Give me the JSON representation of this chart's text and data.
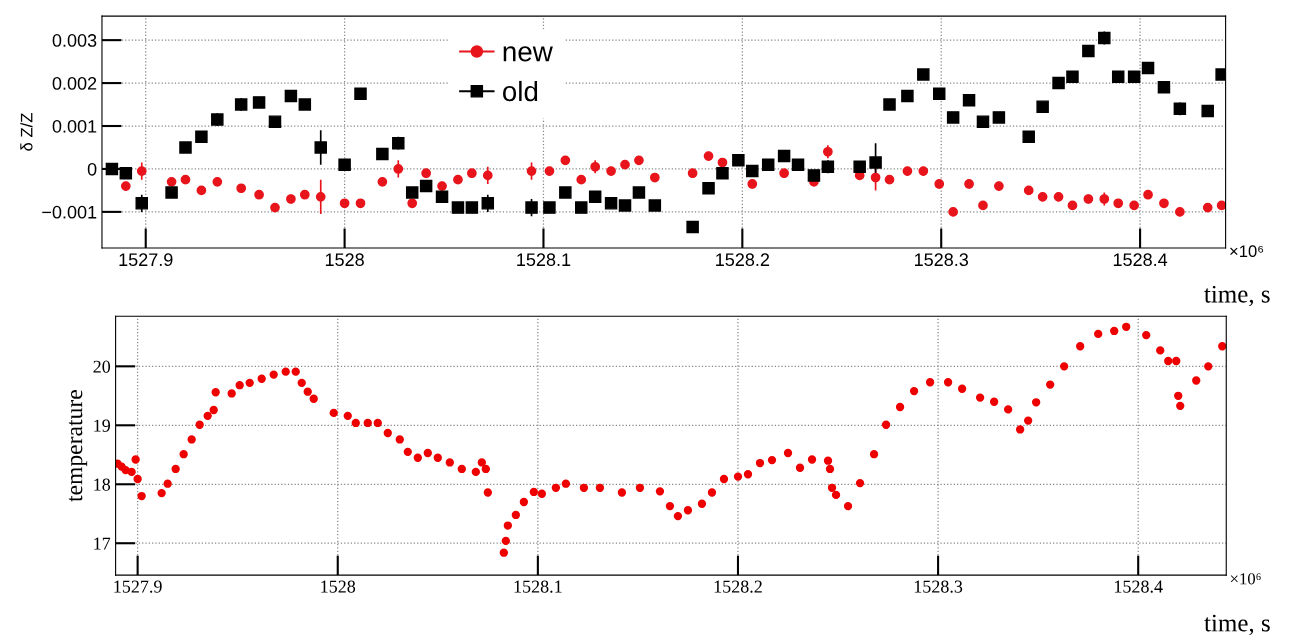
{
  "chart_data": [
    {
      "type": "scatter",
      "ylabel": "δ Z/Z",
      "xlabel": "time, s",
      "annotations": [
        "×10⁶"
      ],
      "legend": "top",
      "grid": true,
      "xlim": [
        1527.878,
        1528.443
      ],
      "xticks": [
        1527.9,
        1528,
        1528.1,
        1528.2,
        1528.3,
        1528.4
      ],
      "ylim": [
        -0.00184,
        0.00356
      ],
      "yticks": [
        {
          "value": -0.001,
          "label": "−0.001"
        },
        0,
        0.001,
        0.002,
        0.003
      ],
      "x": [
        1527.883,
        1527.89,
        1527.898,
        1527.913,
        1527.92,
        1527.928,
        1527.936,
        1527.948,
        1527.957,
        1527.965,
        1527.973,
        1527.98,
        1527.988,
        1528.0,
        1528.008,
        1528.019,
        1528.027,
        1528.034,
        1528.041,
        1528.049,
        1528.057,
        1528.064,
        1528.072,
        1528.094,
        1528.103,
        1528.111,
        1528.119,
        1528.126,
        1528.134,
        1528.141,
        1528.148,
        1528.156,
        1528.175,
        1528.183,
        1528.19,
        1528.198,
        1528.205,
        1528.213,
        1528.221,
        1528.228,
        1528.236,
        1528.243,
        1528.259,
        1528.267,
        1528.274,
        1528.283,
        1528.291,
        1528.299,
        1528.306,
        1528.314,
        1528.321,
        1528.329,
        1528.344,
        1528.351,
        1528.359,
        1528.366,
        1528.374,
        1528.382,
        1528.389,
        1528.397,
        1528.404,
        1528.412,
        1528.42,
        1528.434,
        1528.441
      ],
      "series": [
        {
          "name": "new",
          "color": "#e8141c",
          "marker": "circle",
          "values": [
            null,
            -0.0004,
            -5e-05,
            -0.0003,
            -0.00025,
            -0.0005,
            -0.0003,
            -0.00045,
            -0.0006,
            -0.0009,
            -0.0007,
            -0.0006,
            -0.00065,
            -0.0008,
            -0.0008,
            -0.0003,
            0,
            -0.0008,
            -0.0001,
            -0.0004,
            -0.00025,
            -0.0001,
            -0.00015,
            -5e-05,
            -5e-05,
            0.0002,
            -0.00025,
            5e-05,
            -5e-05,
            0.0001,
            0.0002,
            -0.0002,
            -0.0001,
            0.0003,
            0.00015,
            null,
            -0.00035,
            null,
            -0.0001,
            null,
            -0.0003,
            0.0004,
            -0.00015,
            -0.0002,
            -0.00025,
            -5e-05,
            -5e-05,
            -0.00035,
            -0.001,
            -0.00035,
            -0.00085,
            -0.0004,
            -0.0005,
            -0.00065,
            -0.00065,
            -0.00085,
            -0.0007,
            -0.0007,
            -0.0008,
            -0.00085,
            -0.0006,
            -0.0008,
            -0.001,
            -0.0009,
            -0.00085
          ],
          "errors": [
            null,
            0.0001,
            0.0002,
            0.0001,
            0.0001,
            0.0001,
            0.0001,
            0.0001,
            0.0001,
            0.0001,
            0.0001,
            0.0001,
            0.0004,
            0.0001,
            0.0001,
            0.0001,
            0.0002,
            0.0001,
            0.0001,
            0.0001,
            0.0001,
            0.0001,
            0.0002,
            0.0002,
            0.0001,
            0.0001,
            0.0001,
            0.00015,
            0.0001,
            0.0001,
            0.0001,
            0.0001,
            0.0001,
            0.0001,
            0.0001,
            null,
            0.0001,
            null,
            0.0001,
            null,
            0.0001,
            0.00015,
            0.0001,
            0.0003,
            0.0001,
            0.0001,
            0.0001,
            0.0001,
            0.0001,
            0.0001,
            0.0001,
            0.0001,
            0.0001,
            0.0001,
            0.0001,
            0.0001,
            0.0001,
            0.00015,
            0.0001,
            0.0001,
            0.0001,
            0.0001,
            0.0001,
            0.0001,
            0.0001
          ]
        },
        {
          "name": "old",
          "color": "#000000",
          "marker": "square",
          "values": [
            0,
            -0.0001,
            -0.0008,
            -0.00055,
            0.0005,
            0.00075,
            0.00115,
            0.0015,
            0.00155,
            0.0011,
            0.0017,
            0.0015,
            0.0005,
            0.0001,
            0.00175,
            0.00035,
            0.0006,
            -0.00055,
            -0.0004,
            -0.00065,
            -0.0009,
            -0.0009,
            -0.0008,
            -0.0009,
            -0.0009,
            -0.00055,
            -0.0009,
            -0.00065,
            -0.0008,
            -0.00085,
            -0.00055,
            -0.00085,
            -0.00135,
            -0.00045,
            -0.0001,
            0.0002,
            -5e-05,
            0.0001,
            0.0003,
            0.0001,
            -0.00015,
            5e-05,
            5e-05,
            0.00015,
            0.0015,
            0.0017,
            0.0022,
            0.00175,
            0.0012,
            0.0016,
            0.0011,
            0.0012,
            0.00075,
            0.00145,
            0.002,
            0.00215,
            0.00275,
            0.00305,
            0.00215,
            0.00215,
            0.00235,
            0.0019,
            0.0014,
            0.00135,
            0.0022
          ],
          "errors": [
            0.0001,
            0.0001,
            0.0002,
            0.0001,
            0.0001,
            0.0001,
            0.00015,
            0.00015,
            0.0001,
            0.0001,
            0.0001,
            0.0001,
            0.0004,
            0.0001,
            0.0001,
            0.0001,
            0.00015,
            0.0001,
            0.0001,
            0.0001,
            0.0001,
            0.0001,
            0.0002,
            0.0002,
            0.0001,
            0.0001,
            0.0001,
            0.0001,
            0.0001,
            0.0001,
            0.0001,
            0.0001,
            0.0001,
            0.0001,
            0.0001,
            0.0001,
            0.0001,
            null,
            0.0001,
            0.0001,
            0.0001,
            0.00015,
            0.0001,
            0.00045,
            0.0001,
            0.0001,
            0.0001,
            0.0001,
            0.0001,
            0.0001,
            0.0001,
            0.0001,
            0.0001,
            0.0001,
            0.0001,
            0.0001,
            0.0001,
            0.00015,
            0.0001,
            0.0001,
            0.0001,
            0.0001,
            0.00015,
            0.0001,
            0.0001
          ]
        }
      ]
    },
    {
      "type": "scatter",
      "ylabel": "temperature",
      "xlabel": "time, s",
      "annotations": [
        "×10⁶"
      ],
      "grid": true,
      "xlim": [
        1527.889,
        1528.444
      ],
      "xticks": [
        1527.9,
        1528,
        1528.1,
        1528.2,
        1528.3,
        1528.4
      ],
      "ylim": [
        16.46,
        20.85
      ],
      "yticks": [
        17,
        18,
        19,
        20
      ],
      "series": [
        {
          "color": "#ee0000",
          "marker": "circle",
          "x": [
            1527.89,
            1527.892,
            1527.894,
            1527.897,
            1527.899,
            1527.9,
            1527.902,
            1527.912,
            1527.915,
            1527.919,
            1527.923,
            1527.927,
            1527.931,
            1527.935,
            1527.938,
            1527.939,
            1527.947,
            1527.951,
            1527.956,
            1527.962,
            1527.968,
            1527.974,
            1527.979,
            1527.982,
            1527.985,
            1527.988,
            1527.998,
            1528.005,
            1528.009,
            1528.015,
            1528.02,
            1528.025,
            1528.031,
            1528.035,
            1528.04,
            1528.045,
            1528.05,
            1528.056,
            1528.062,
            1528.069,
            1528.072,
            1528.074,
            1528.075,
            1528.083,
            1528.084,
            1528.085,
            1528.089,
            1528.093,
            1528.098,
            1528.102,
            1528.109,
            1528.114,
            1528.123,
            1528.131,
            1528.142,
            1528.151,
            1528.161,
            1528.166,
            1528.17,
            1528.175,
            1528.182,
            1528.187,
            1528.193,
            1528.2,
            1528.205,
            1528.211,
            1528.217,
            1528.225,
            1528.231,
            1528.237,
            1528.245,
            1528.246,
            1528.247,
            1528.249,
            1528.255,
            1528.261,
            1528.268,
            1528.274,
            1528.281,
            1528.288,
            1528.296,
            1528.305,
            1528.312,
            1528.321,
            1528.328,
            1528.335,
            1528.341,
            1528.345,
            1528.349,
            1528.356,
            1528.363,
            1528.371,
            1528.38,
            1528.388,
            1528.394,
            1528.404,
            1528.411,
            1528.415,
            1528.419,
            1528.42,
            1528.421,
            1528.429,
            1528.435,
            1528.442
          ],
          "values": [
            18.35,
            18.3,
            18.24,
            18.21,
            18.42,
            18.09,
            17.8,
            17.85,
            18.01,
            18.26,
            18.51,
            18.76,
            19.01,
            19.16,
            19.26,
            19.56,
            19.54,
            19.68,
            19.72,
            19.79,
            19.86,
            19.91,
            19.91,
            19.72,
            19.57,
            19.45,
            19.21,
            19.16,
            19.04,
            19.04,
            19.04,
            18.87,
            18.76,
            18.55,
            18.45,
            18.53,
            18.45,
            18.37,
            18.26,
            18.21,
            18.37,
            18.26,
            17.86,
            16.84,
            17.04,
            17.3,
            17.48,
            17.7,
            17.87,
            17.84,
            17.94,
            18.01,
            17.94,
            17.94,
            17.86,
            17.94,
            17.88,
            17.63,
            17.46,
            17.56,
            17.67,
            17.86,
            18.09,
            18.13,
            18.17,
            18.36,
            18.41,
            18.53,
            18.28,
            18.42,
            18.4,
            18.26,
            17.94,
            17.82,
            17.63,
            18.02,
            18.51,
            19.01,
            19.31,
            19.58,
            19.73,
            19.73,
            19.62,
            19.47,
            19.4,
            19.27,
            18.93,
            19.08,
            19.39,
            19.69,
            20.0,
            20.34,
            20.55,
            20.6,
            20.67,
            20.53,
            20.27,
            20.09,
            20.09,
            19.5,
            19.33,
            19.76,
            20.0,
            20.34
          ]
        }
      ]
    }
  ]
}
